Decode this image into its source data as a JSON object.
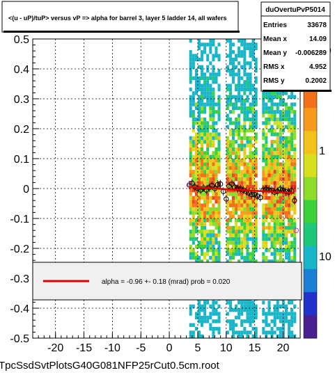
{
  "header": {
    "title": "<(u - uP)/tuP> versus  vP => alpha for barrel 3, layer 5 ladder 14, all wafers"
  },
  "stats": {
    "name": "duOvertuPvP5014",
    "rows": [
      {
        "label": "Entries",
        "value": "33678"
      },
      {
        "label": "Mean x",
        "value": "14.09"
      },
      {
        "label": "Mean y",
        "value": "-0.006289"
      },
      {
        "label": "RMS x",
        "value": "4.952"
      },
      {
        "label": "RMS y",
        "value": "0.2002"
      }
    ]
  },
  "legend": {
    "text": "alpha =   -0.96 +-  0.18 (mrad) prob = 0.020",
    "line_color": "#e00000"
  },
  "footer": {
    "filename": "TpcSsdSvtPlotsG40G081NFP25rCut0.5cm.root"
  },
  "palette": {
    "tick_labels": [
      "10",
      "1",
      "10"
    ],
    "colors": [
      "#4a1f8f",
      "#2233cc",
      "#1b7fd6",
      "#19b5c8",
      "#1fc77a",
      "#3bd13a",
      "#8edb2a",
      "#d6e01f",
      "#f2c21b",
      "#f59a1a",
      "#f2701c",
      "#e84a1c",
      "#d92a1a"
    ]
  },
  "chart_data": {
    "type": "heatmap",
    "xlim": [
      -24,
      23
    ],
    "ylim": [
      -0.5,
      0.5
    ],
    "x_ticks": [
      -20,
      -15,
      -10,
      -5,
      0,
      5,
      10,
      15,
      20
    ],
    "y_ticks": [
      0.5,
      0.4,
      0.3,
      0.2,
      0.1,
      0,
      -0.1,
      -0.2,
      -0.3,
      -0.4,
      -0.5
    ],
    "x_tick_labels": [
      "-20",
      "-15",
      "-10",
      "-5",
      "0",
      "5",
      "10",
      "15",
      "20"
    ],
    "y_tick_labels": [
      "0.5",
      "0.4",
      "0.3",
      "0.2",
      "0.1",
      "0",
      "-0.1",
      "-0.2",
      "-0.3",
      "-0.4",
      "-0.5"
    ],
    "grid": true,
    "occupied_x_bands": [
      [
        3.5,
        9.0
      ],
      [
        10.0,
        15.5
      ],
      [
        16.3,
        22.0
      ]
    ],
    "profile": {
      "x": [
        3.5,
        4.0,
        4.5,
        5.0,
        5.5,
        6.0,
        6.5,
        7.0,
        7.5,
        8.0,
        8.5,
        9.0,
        9.5,
        10.0,
        10.5,
        11.0,
        11.5,
        12.0,
        12.5,
        13.0,
        13.5,
        14.0,
        14.5,
        15.0,
        15.5,
        16.0,
        16.5,
        17.0,
        17.5,
        18.0,
        18.5,
        19.0,
        19.5,
        20.0,
        20.5,
        21.0,
        21.5,
        22.0
      ],
      "y": [
        0.012,
        0.018,
        0.005,
        0.0,
        -0.005,
        0.002,
        -0.005,
        0.003,
        0.01,
        0.0,
        0.013,
        0.015,
        -0.01,
        -0.035,
        0.008,
        0.015,
        0.005,
        0.0,
        -0.002,
        -0.005,
        -0.01,
        -0.015,
        -0.02,
        -0.02,
        -0.025,
        -0.03,
        -0.005,
        -0.002,
        -0.005,
        -0.005,
        -0.012,
        -0.01,
        -0.002,
        -0.005,
        -0.01,
        -0.012,
        -0.008,
        -0.04
      ],
      "outliers": [
        {
          "x": 22.3,
          "y": -0.14
        }
      ]
    },
    "fit_line": {
      "x": [
        3.5,
        22.0
      ],
      "y": [
        0.005,
        -0.015
      ]
    }
  }
}
